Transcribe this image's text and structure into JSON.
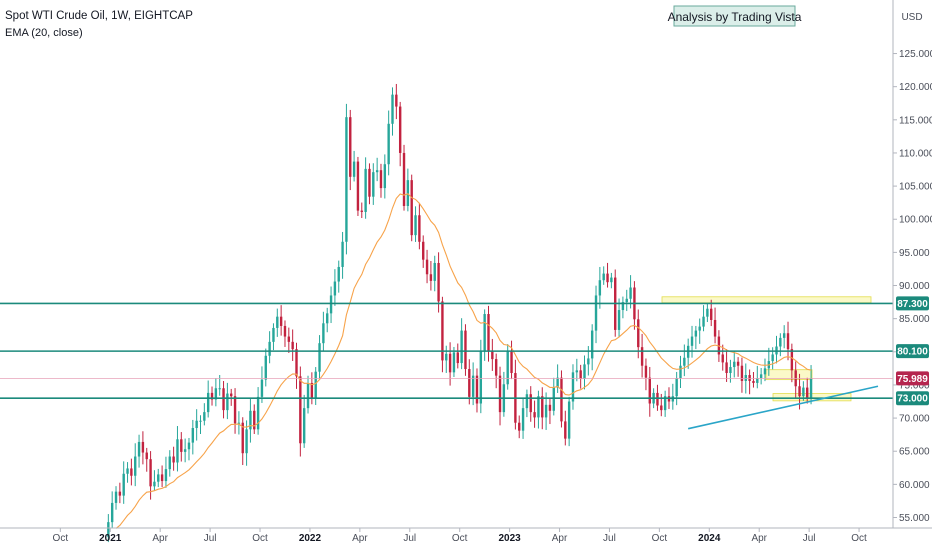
{
  "chart_data": {
    "type": "candlestick",
    "title": "Spot WTI Crude Oil, 1W, EIGHTCAP",
    "indicator": "EMA (20, close)",
    "annotation": "Analysis by Trading Vista",
    "currency": "USD",
    "ylim": [
      54.5,
      129.8
    ],
    "yticks": [
      "55.000",
      "60.000",
      "65.000",
      "70.000",
      "75.000",
      "80.000",
      "85.000",
      "90.000",
      "95.000",
      "100.000",
      "105.000",
      "110.000",
      "115.000",
      "120.000",
      "125.000"
    ],
    "xticks": [
      {
        "label": "Oct",
        "week": -11.5,
        "bold": false
      },
      {
        "label": "2021",
        "week": 1.5,
        "bold": true
      },
      {
        "label": "Apr",
        "week": 14.5,
        "bold": false
      },
      {
        "label": "Jul",
        "week": 27.5,
        "bold": false
      },
      {
        "label": "Oct",
        "week": 40.5,
        "bold": false
      },
      {
        "label": "2022",
        "week": 53.5,
        "bold": true
      },
      {
        "label": "Apr",
        "week": 66.5,
        "bold": false
      },
      {
        "label": "Jul",
        "week": 79.5,
        "bold": false
      },
      {
        "label": "Oct",
        "week": 92.5,
        "bold": false
      },
      {
        "label": "2023",
        "week": 105.5,
        "bold": true
      },
      {
        "label": "Apr",
        "week": 118.5,
        "bold": false
      },
      {
        "label": "Jul",
        "week": 131.5,
        "bold": false
      },
      {
        "label": "Oct",
        "week": 144.5,
        "bold": false
      },
      {
        "label": "2024",
        "week": 157.5,
        "bold": true
      },
      {
        "label": "Apr",
        "week": 170.5,
        "bold": false
      },
      {
        "label": "Jul",
        "week": 183.5,
        "bold": false
      },
      {
        "label": "Oct",
        "week": 196.5,
        "bold": false
      }
    ],
    "closes": [
      52.1,
      54.3,
      57.2,
      58.9,
      58.3,
      61.6,
      62.4,
      61.3,
      64.2,
      66.4,
      64.8,
      63.8,
      59.7,
      60.4,
      61.5,
      60.5,
      62.3,
      64.2,
      63.3,
      66.8,
      64.9,
      65.3,
      66.3,
      68.5,
      69.6,
      69.6,
      70.9,
      73.8,
      72.8,
      74.5,
      74.5,
      71.2,
      73.7,
      73.3,
      69.2,
      69.3,
      64.7,
      68.3,
      71.1,
      68.3,
      73.2,
      75.8,
      79.4,
      81.5,
      83.6,
      85.3,
      83.9,
      82.3,
      81.5,
      80.4,
      76.3,
      66.2,
      71.5,
      75.3,
      73.0,
      77.0,
      81.3,
      84.3,
      85.8,
      88.5,
      90.6,
      92.8,
      96.6,
      115.4,
      106.4,
      108.7,
      101.3,
      101.1,
      107.6,
      103.4,
      107.1,
      107.4,
      104.7,
      108.3,
      114.4,
      118.8,
      117.0,
      110.0,
      102.0,
      105.9,
      97.6,
      100.6,
      96.6,
      93.9,
      91.7,
      90.7,
      93.4,
      87.6,
      78.7,
      79.7,
      76.9,
      79.9,
      78.3,
      83.2,
      77.4,
      73.2,
      76.4,
      72.2,
      80.2,
      85.7,
      80.2,
      78.9,
      76.4,
      70.9,
      75.1,
      80.2,
      76.8,
      69.3,
      68.1,
      71.5,
      73.6,
      70.9,
      70.1,
      73.3,
      70.1,
      72.0,
      71.1,
      74.6,
      76.1,
      69.5,
      66.9,
      72.5,
      76.9,
      77.2,
      75.9,
      78.1,
      79.0,
      83.2,
      88.5,
      90.8,
      91.8,
      90.5,
      91.2,
      83.3,
      86.3,
      87.5,
      88.0,
      89.7,
      84.9,
      80.7,
      77.9,
      76.1,
      72.2,
      73.8,
      71.9,
      71.2,
      73.3,
      72.5,
      73.3,
      76.0,
      77.9,
      79.1,
      80.9,
      82.3,
      83.2,
      83.8,
      85.3,
      86.5,
      84.8,
      82.3,
      79.6,
      78.4,
      76.8,
      77.7,
      78.5,
      77.9,
      75.6,
      76.5,
      75.6,
      75.3,
      76.0,
      76.6,
      77.5,
      78.6,
      79.6,
      80.8,
      82.1,
      82.8,
      80.4,
      77.2,
      74.8,
      73.3,
      74.6,
      73.0,
      76.0
    ],
    "ema_label": "EMA (20, close)",
    "price_levels": [
      {
        "label": "87.300",
        "value": 87.3,
        "kind": "horizontal-line",
        "color": "#1b8a7c"
      },
      {
        "label": "80.100",
        "value": 80.1,
        "kind": "horizontal-line",
        "color": "#1b8a7c"
      },
      {
        "label": "75.989",
        "value": 75.989,
        "kind": "current-price",
        "color": "#b5254e"
      },
      {
        "label": "73.000",
        "value": 73.0,
        "kind": "horizontal-line",
        "color": "#1b8a7c"
      }
    ],
    "colors": {
      "up": "#26a69a",
      "down": "#c2223f",
      "ema": "#f7a34a",
      "levels": "#1b8a7c",
      "trendline": "#2aa5c8",
      "zone": "#f7f49a"
    }
  }
}
